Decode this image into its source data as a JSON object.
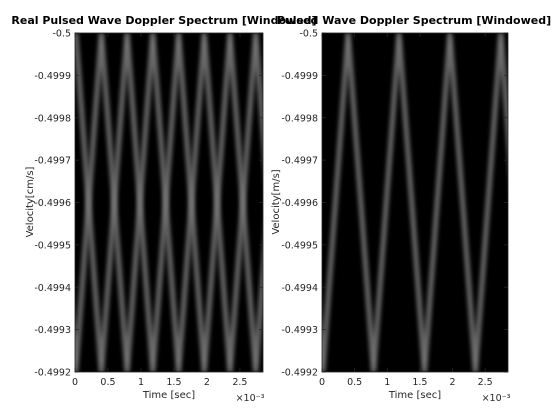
{
  "chart_data": [
    {
      "type": "heatmap",
      "title": "Real Pulsed Wave Doppler Spectrum [Windowed]",
      "xlabel": "Time [sec]",
      "ylabel": "Velocity[cm/s]",
      "x_exponent": "×10⁻³",
      "xlim": [
        0,
        2.85
      ],
      "ylim": [
        -0.5,
        -0.4992
      ],
      "x_ticks": [
        0,
        0.5,
        1,
        1.5,
        2,
        2.5
      ],
      "x_tick_labels": [
        "0",
        "0.5",
        "1",
        "1.5",
        "2",
        "2.5"
      ],
      "y_ticks": [
        -0.5,
        -0.4999,
        -0.4998,
        -0.4997,
        -0.4996,
        -0.4995,
        -0.4994,
        -0.4993,
        -0.4992
      ],
      "y_tick_labels": [
        "-0.5",
        "-0.4999",
        "-0.4998",
        "-0.4997",
        "-0.4996",
        "-0.4995",
        "-0.4994",
        "-0.4993",
        "-0.4992"
      ],
      "colormap": "gray",
      "background": "#000000",
      "pattern": {
        "shape": "triangle",
        "mirrored": true,
        "period": 0.78,
        "phase": 0.4,
        "trace_width": 0.04
      }
    },
    {
      "type": "heatmap",
      "title": "Pulsed Wave Doppler Spectrum [Windowed]",
      "xlabel": "Time [sec]",
      "ylabel": "Velocity[m/s]",
      "x_exponent": "×10⁻³",
      "xlim": [
        0,
        2.85
      ],
      "ylim": [
        -0.5,
        -0.4992
      ],
      "x_ticks": [
        0,
        0.5,
        1,
        1.5,
        2,
        2.5
      ],
      "x_tick_labels": [
        "0",
        "0.5",
        "1",
        "1.5",
        "2",
        "2.5"
      ],
      "y_ticks": [
        -0.5,
        -0.4999,
        -0.4998,
        -0.4997,
        -0.4996,
        -0.4995,
        -0.4994,
        -0.4993,
        -0.4992
      ],
      "y_tick_labels": [
        "-0.5",
        "-0.4999",
        "-0.4998",
        "-0.4997",
        "-0.4996",
        "-0.4995",
        "-0.4994",
        "-0.4993",
        "-0.4992"
      ],
      "colormap": "gray",
      "background": "#000000",
      "pattern": {
        "shape": "triangle",
        "mirrored": false,
        "period": 0.78,
        "phase": 0.4,
        "trace_width": 0.04
      }
    }
  ]
}
